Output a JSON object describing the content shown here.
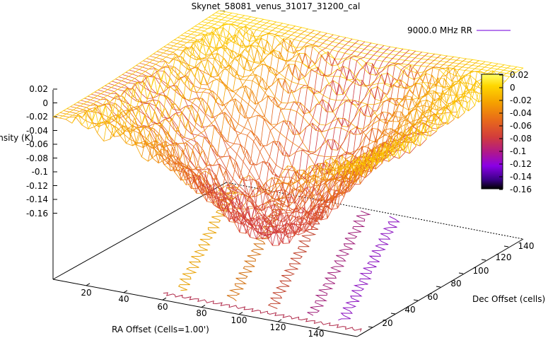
{
  "chart_data": {
    "type": "surface3d",
    "title": "Skynet_58081_venus_31017_31200_cal",
    "zlabel": "Intensity (K)",
    "xlabel": "RA Offset (Cells=1.00')",
    "ylabel": "Dec Offset (cells)",
    "legend": {
      "label": "9000.0 MHz RR",
      "position": "top-right",
      "color": "#8a2be2"
    },
    "z_ticks": [
      "0.02",
      "0",
      "-0.02",
      "-0.04",
      "-0.06",
      "-0.08",
      "-0.1",
      "-0.12",
      "-0.14",
      "-0.16"
    ],
    "x_ticks": [
      "20",
      "40",
      "60",
      "80",
      "100",
      "120",
      "140"
    ],
    "y_ticks": [
      "20",
      "40",
      "60",
      "80",
      "100",
      "120",
      "140"
    ],
    "colorbar_ticks": [
      "0.02",
      "0",
      "-0.02",
      "-0.04",
      "-0.06",
      "-0.08",
      "-0.1",
      "-0.12",
      "-0.14",
      "-0.16"
    ],
    "zlim": [
      -0.16,
      0.02
    ],
    "xlim": [
      0,
      150
    ],
    "ylim": [
      0,
      150
    ],
    "palette": [
      "#000000",
      "#3b0087",
      "#8a00e6",
      "#b0188a",
      "#d23c3c",
      "#e86a1a",
      "#f5a000",
      "#ffd700",
      "#ffff66"
    ],
    "grid": false
  }
}
